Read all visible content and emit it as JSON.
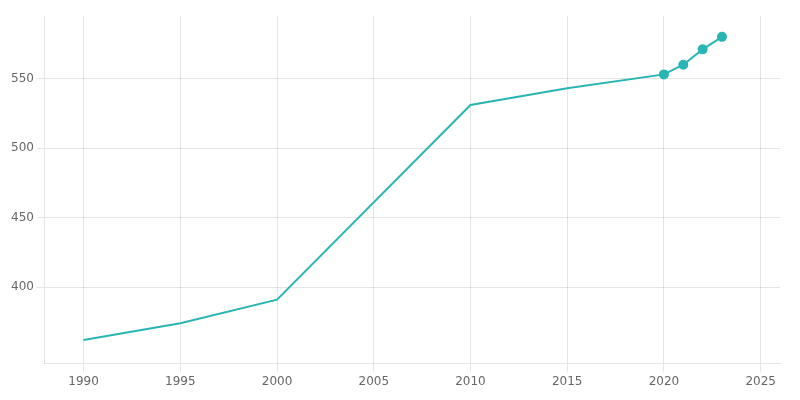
{
  "chart_data": {
    "type": "line",
    "x": [
      1990,
      1995,
      2000,
      2010,
      2015,
      2020,
      2021,
      2022,
      2023
    ],
    "series": [
      {
        "color": "#2ab5b5",
        "values": [
          362,
          374,
          391,
          531,
          543,
          553,
          560,
          571,
          580
        ],
        "marker": "none",
        "line_style": "solid"
      },
      {
        "color": "#2ab5b5",
        "values": [
          null,
          null,
          null,
          null,
          null,
          553,
          560,
          571,
          580
        ],
        "marker": "circle",
        "line_style": "none"
      }
    ],
    "xlim": [
      1988,
      2026
    ],
    "xticks": [
      1990,
      1995,
      2000,
      2005,
      2010,
      2015,
      2020,
      2025
    ],
    "ylim": [
      345,
      595
    ],
    "yticks": [
      400,
      450,
      500,
      550
    ],
    "grid": true
  }
}
